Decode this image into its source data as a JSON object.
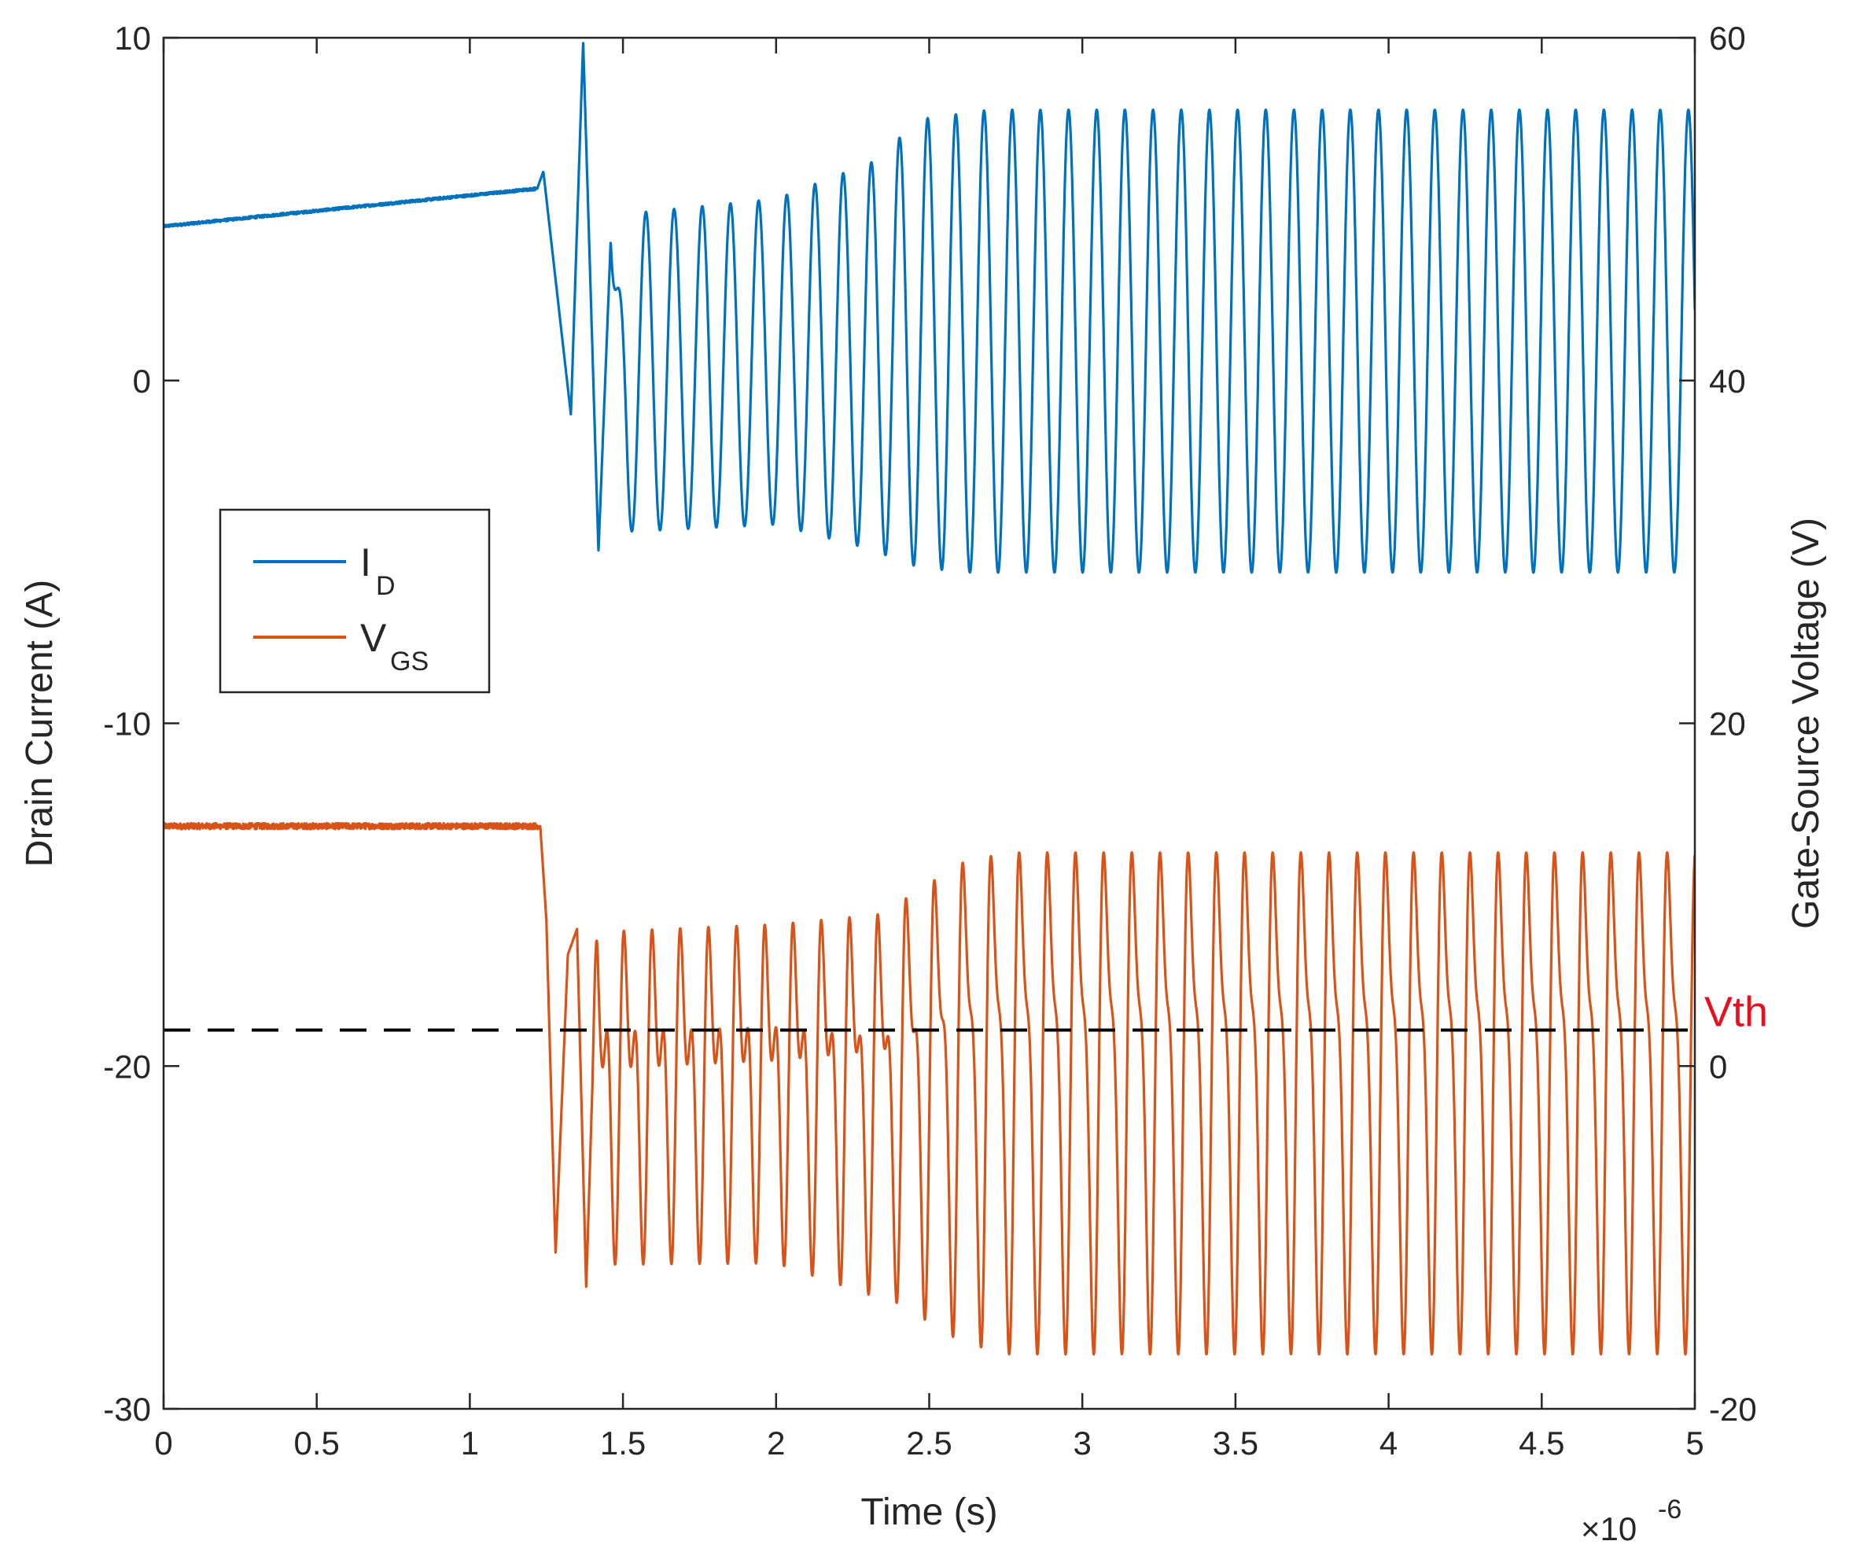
{
  "chart_data": {
    "type": "line",
    "xlabel": "Time (s)",
    "x_exponent_label": "×10",
    "x_exponent_value": "-6",
    "xlim": [
      0,
      5e-06
    ],
    "x_ticks": [
      {
        "value": 0,
        "label": "0"
      },
      {
        "value": 5e-07,
        "label": "0.5"
      },
      {
        "value": 1e-06,
        "label": "1"
      },
      {
        "value": 1.5e-06,
        "label": "1.5"
      },
      {
        "value": 2e-06,
        "label": "2"
      },
      {
        "value": 2.5e-06,
        "label": "2.5"
      },
      {
        "value": 3e-06,
        "label": "3"
      },
      {
        "value": 3.5e-06,
        "label": "3.5"
      },
      {
        "value": 4e-06,
        "label": "4"
      },
      {
        "value": 4.5e-06,
        "label": "4.5"
      },
      {
        "value": 5e-06,
        "label": "5"
      }
    ],
    "y_left": {
      "label": "Drain Current (A)",
      "lim": [
        -30,
        10
      ],
      "ticks": [
        {
          "value": 10,
          "label": "10"
        },
        {
          "value": 0,
          "label": "0"
        },
        {
          "value": -10,
          "label": "-10"
        },
        {
          "value": -20,
          "label": "-20"
        },
        {
          "value": -30,
          "label": "-30"
        }
      ]
    },
    "y_right": {
      "label": "Gate-Source Voltage (V)",
      "lim": [
        -20,
        60
      ],
      "ticks": [
        {
          "value": 60,
          "label": "60"
        },
        {
          "value": 40,
          "label": "40"
        },
        {
          "value": 20,
          "label": "20"
        },
        {
          "value": 0,
          "label": "0"
        },
        {
          "value": -20,
          "label": "-20"
        }
      ]
    },
    "legend": {
      "position": "middle-left",
      "entries": [
        {
          "main": "I",
          "sub": "D",
          "color": "#0072BD"
        },
        {
          "main": "V",
          "sub": "GS",
          "color": "#D95319"
        }
      ]
    },
    "series": [
      {
        "name": "I_D",
        "axis": "left",
        "color": "#0072BD",
        "description_points": [
          [
            0,
            4.5
          ],
          [
            1.22e-06,
            5.6
          ],
          [
            1.24e-06,
            6.1
          ],
          [
            1.33e-06,
            -1.0
          ],
          [
            1.37e-06,
            9.9
          ],
          [
            1.42e-06,
            -5.0
          ],
          [
            1.46e-06,
            4.1
          ],
          [
            1.51e-06,
            -3.0
          ]
        ],
        "oscillation": {
          "start_s": 1.46e-06,
          "period_s": 9.2e-08,
          "max_envelope": [
            [
              1.55e-06,
              4.9
            ],
            [
              2e-06,
              5.3
            ],
            [
              2.35e-06,
              6.5
            ],
            [
              2.45e-06,
              7.6
            ],
            [
              2.7e-06,
              7.9
            ],
            [
              5e-06,
              7.9
            ]
          ],
          "min_envelope": [
            [
              1.55e-06,
              -4.4
            ],
            [
              2e-06,
              -4.2
            ],
            [
              2.3e-06,
              -4.9
            ],
            [
              2.45e-06,
              -5.4
            ],
            [
              2.6e-06,
              -5.6
            ],
            [
              5e-06,
              -5.6
            ]
          ]
        }
      },
      {
        "name": "V_GS",
        "axis": "right",
        "color": "#D95319",
        "description_points": [
          [
            0,
            14.0
          ],
          [
            1.23e-06,
            14.0
          ],
          [
            1.25e-06,
            8.5
          ],
          [
            1.28e-06,
            -11.0
          ],
          [
            1.32e-06,
            6.5
          ],
          [
            1.35e-06,
            8.0
          ],
          [
            1.38e-06,
            -13.0
          ],
          [
            1.42e-06,
            10.5
          ]
        ],
        "oscillation": {
          "start_s": 1.4e-06,
          "period_s": 9.2e-08,
          "max_envelope": [
            [
              1.5e-06,
              7.5
            ],
            [
              2e-06,
              8.0
            ],
            [
              2.35e-06,
              9.5
            ],
            [
              2.6e-06,
              14.0
            ],
            [
              2.75e-06,
              15.0
            ],
            [
              5e-06,
              15.0
            ]
          ],
          "min_envelope": [
            [
              1.5e-06,
              -9.0
            ],
            [
              2e-06,
              -9.0
            ],
            [
              2.4e-06,
              -12.0
            ],
            [
              2.6e-06,
              -15.0
            ],
            [
              2.75e-06,
              -16.0
            ],
            [
              5e-06,
              -16.0
            ]
          ],
          "second_harmonic_amplitude_V": 6.0
        }
      }
    ],
    "reference_line": {
      "label": "Vth",
      "axis": "right",
      "value": 2.1,
      "style": "dashed",
      "color": "#000000",
      "label_color": "#E8101F"
    },
    "grid": false
  }
}
